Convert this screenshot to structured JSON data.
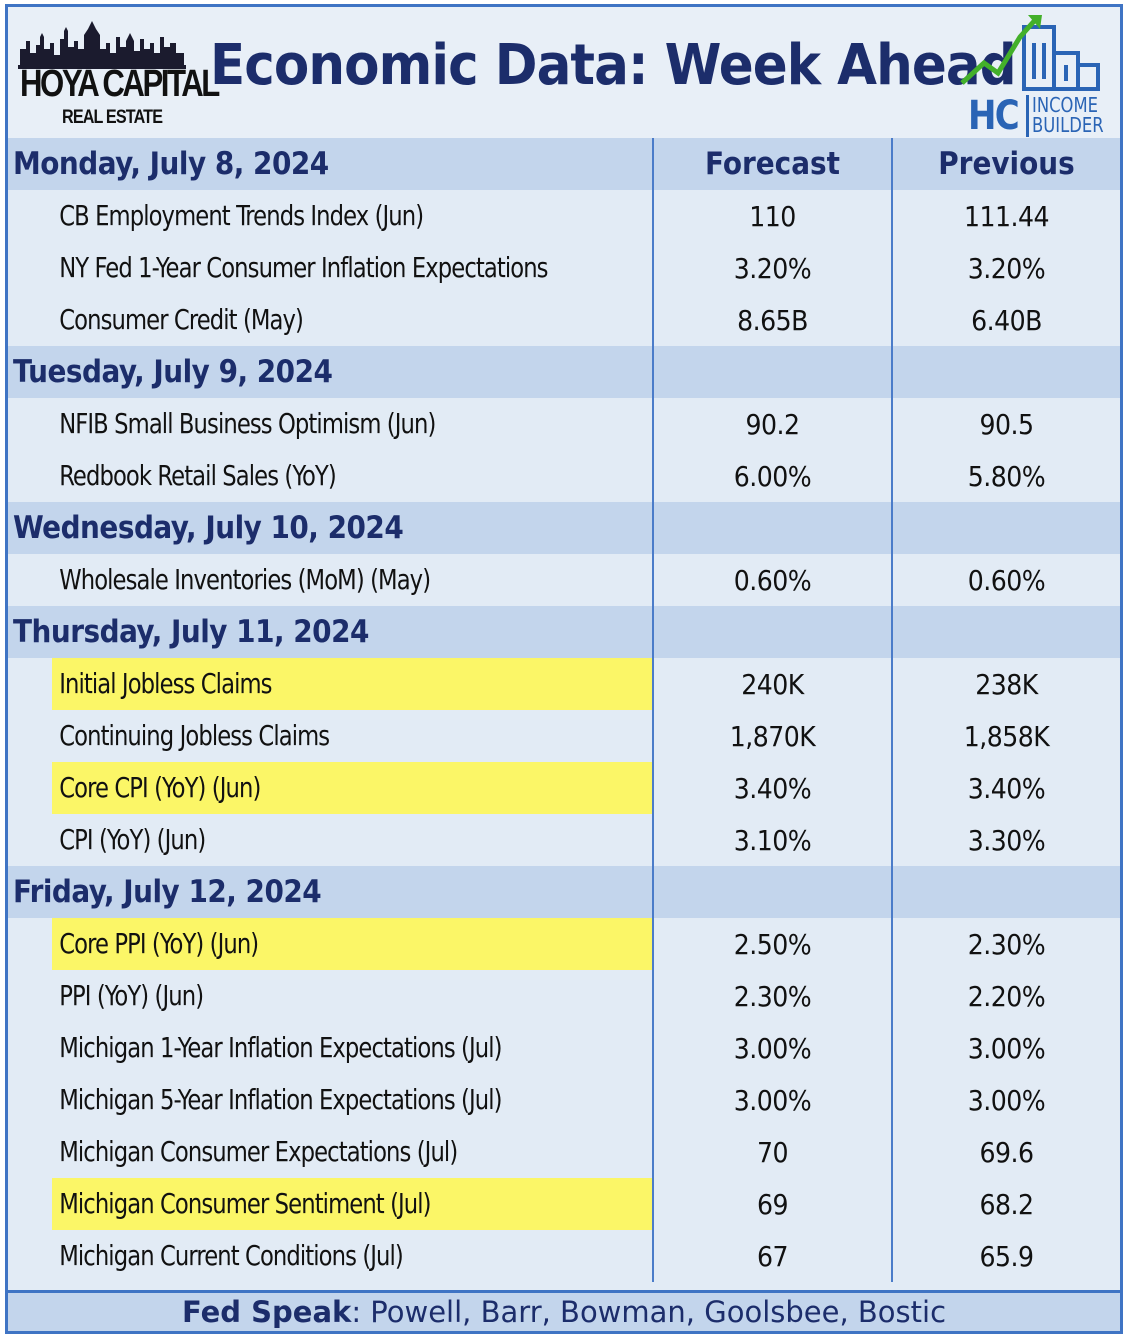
{
  "header": {
    "logo_left": {
      "title": "HOYA CAPITAL",
      "subtitle": "REAL ESTATE"
    },
    "title": "Economic Data: Week Ahead",
    "logo_right": {
      "letters": "HC",
      "line1": "INCOME",
      "line2": "BUILDER"
    }
  },
  "columns": {
    "forecast": "Forecast",
    "previous": "Previous"
  },
  "days": [
    {
      "label": "Monday, July 8, 2024",
      "rows": [
        {
          "name": "CB Employment Trends Index (Jun)",
          "forecast": "110",
          "previous": "111.44",
          "highlight": false
        },
        {
          "name": "NY Fed 1-Year Consumer Inflation Expectations",
          "forecast": "3.20%",
          "previous": "3.20%",
          "highlight": false
        },
        {
          "name": "Consumer Credit (May)",
          "forecast": "8.65B",
          "previous": "6.40B",
          "highlight": false
        }
      ]
    },
    {
      "label": "Tuesday, July 9, 2024",
      "rows": [
        {
          "name": "NFIB Small Business Optimism (Jun)",
          "forecast": "90.2",
          "previous": "90.5",
          "highlight": false
        },
        {
          "name": "Redbook Retail Sales (YoY)",
          "forecast": "6.00%",
          "previous": "5.80%",
          "highlight": false
        }
      ]
    },
    {
      "label": "Wednesday, July 10, 2024",
      "rows": [
        {
          "name": "Wholesale Inventories (MoM) (May)",
          "forecast": "0.60%",
          "previous": "0.60%",
          "highlight": false
        }
      ]
    },
    {
      "label": "Thursday, July 11, 2024",
      "rows": [
        {
          "name": "Initial Jobless Claims",
          "forecast": "240K",
          "previous": "238K",
          "highlight": true
        },
        {
          "name": "Continuing Jobless Claims",
          "forecast": "1,870K",
          "previous": "1,858K",
          "highlight": false
        },
        {
          "name": "Core CPI (YoY) (Jun)",
          "forecast": "3.40%",
          "previous": "3.40%",
          "highlight": true
        },
        {
          "name": "CPI (YoY) (Jun)",
          "forecast": "3.10%",
          "previous": "3.30%",
          "highlight": false
        }
      ]
    },
    {
      "label": "Friday, July 12, 2024",
      "rows": [
        {
          "name": "Core PPI (YoY) (Jun)",
          "forecast": "2.50%",
          "previous": "2.30%",
          "highlight": true
        },
        {
          "name": "PPI (YoY) (Jun)",
          "forecast": "2.30%",
          "previous": "2.20%",
          "highlight": false
        },
        {
          "name": "Michigan 1-Year Inflation Expectations (Jul)",
          "forecast": "3.00%",
          "previous": "3.00%",
          "highlight": false
        },
        {
          "name": "Michigan 5-Year Inflation Expectations (Jul)",
          "forecast": "3.00%",
          "previous": "3.00%",
          "highlight": false
        },
        {
          "name": "Michigan Consumer Expectations (Jul)",
          "forecast": "70",
          "previous": "69.6",
          "highlight": false
        },
        {
          "name": "Michigan Consumer Sentiment (Jul)",
          "forecast": "69",
          "previous": "68.2",
          "highlight": true
        },
        {
          "name": "Michigan Current Conditions (Jul)",
          "forecast": "67",
          "previous": "65.9",
          "highlight": false
        }
      ]
    }
  ],
  "footer": {
    "label": "Fed Speak",
    "speakers": ": Powell, Barr, Bowman, Goolsbee, Bostic"
  },
  "colors": {
    "title": "#1c2d6b",
    "border": "#3f74c4",
    "day_row": "#c3d5ec",
    "item_row": "#e2ebf5",
    "highlight": "#fbf667"
  }
}
